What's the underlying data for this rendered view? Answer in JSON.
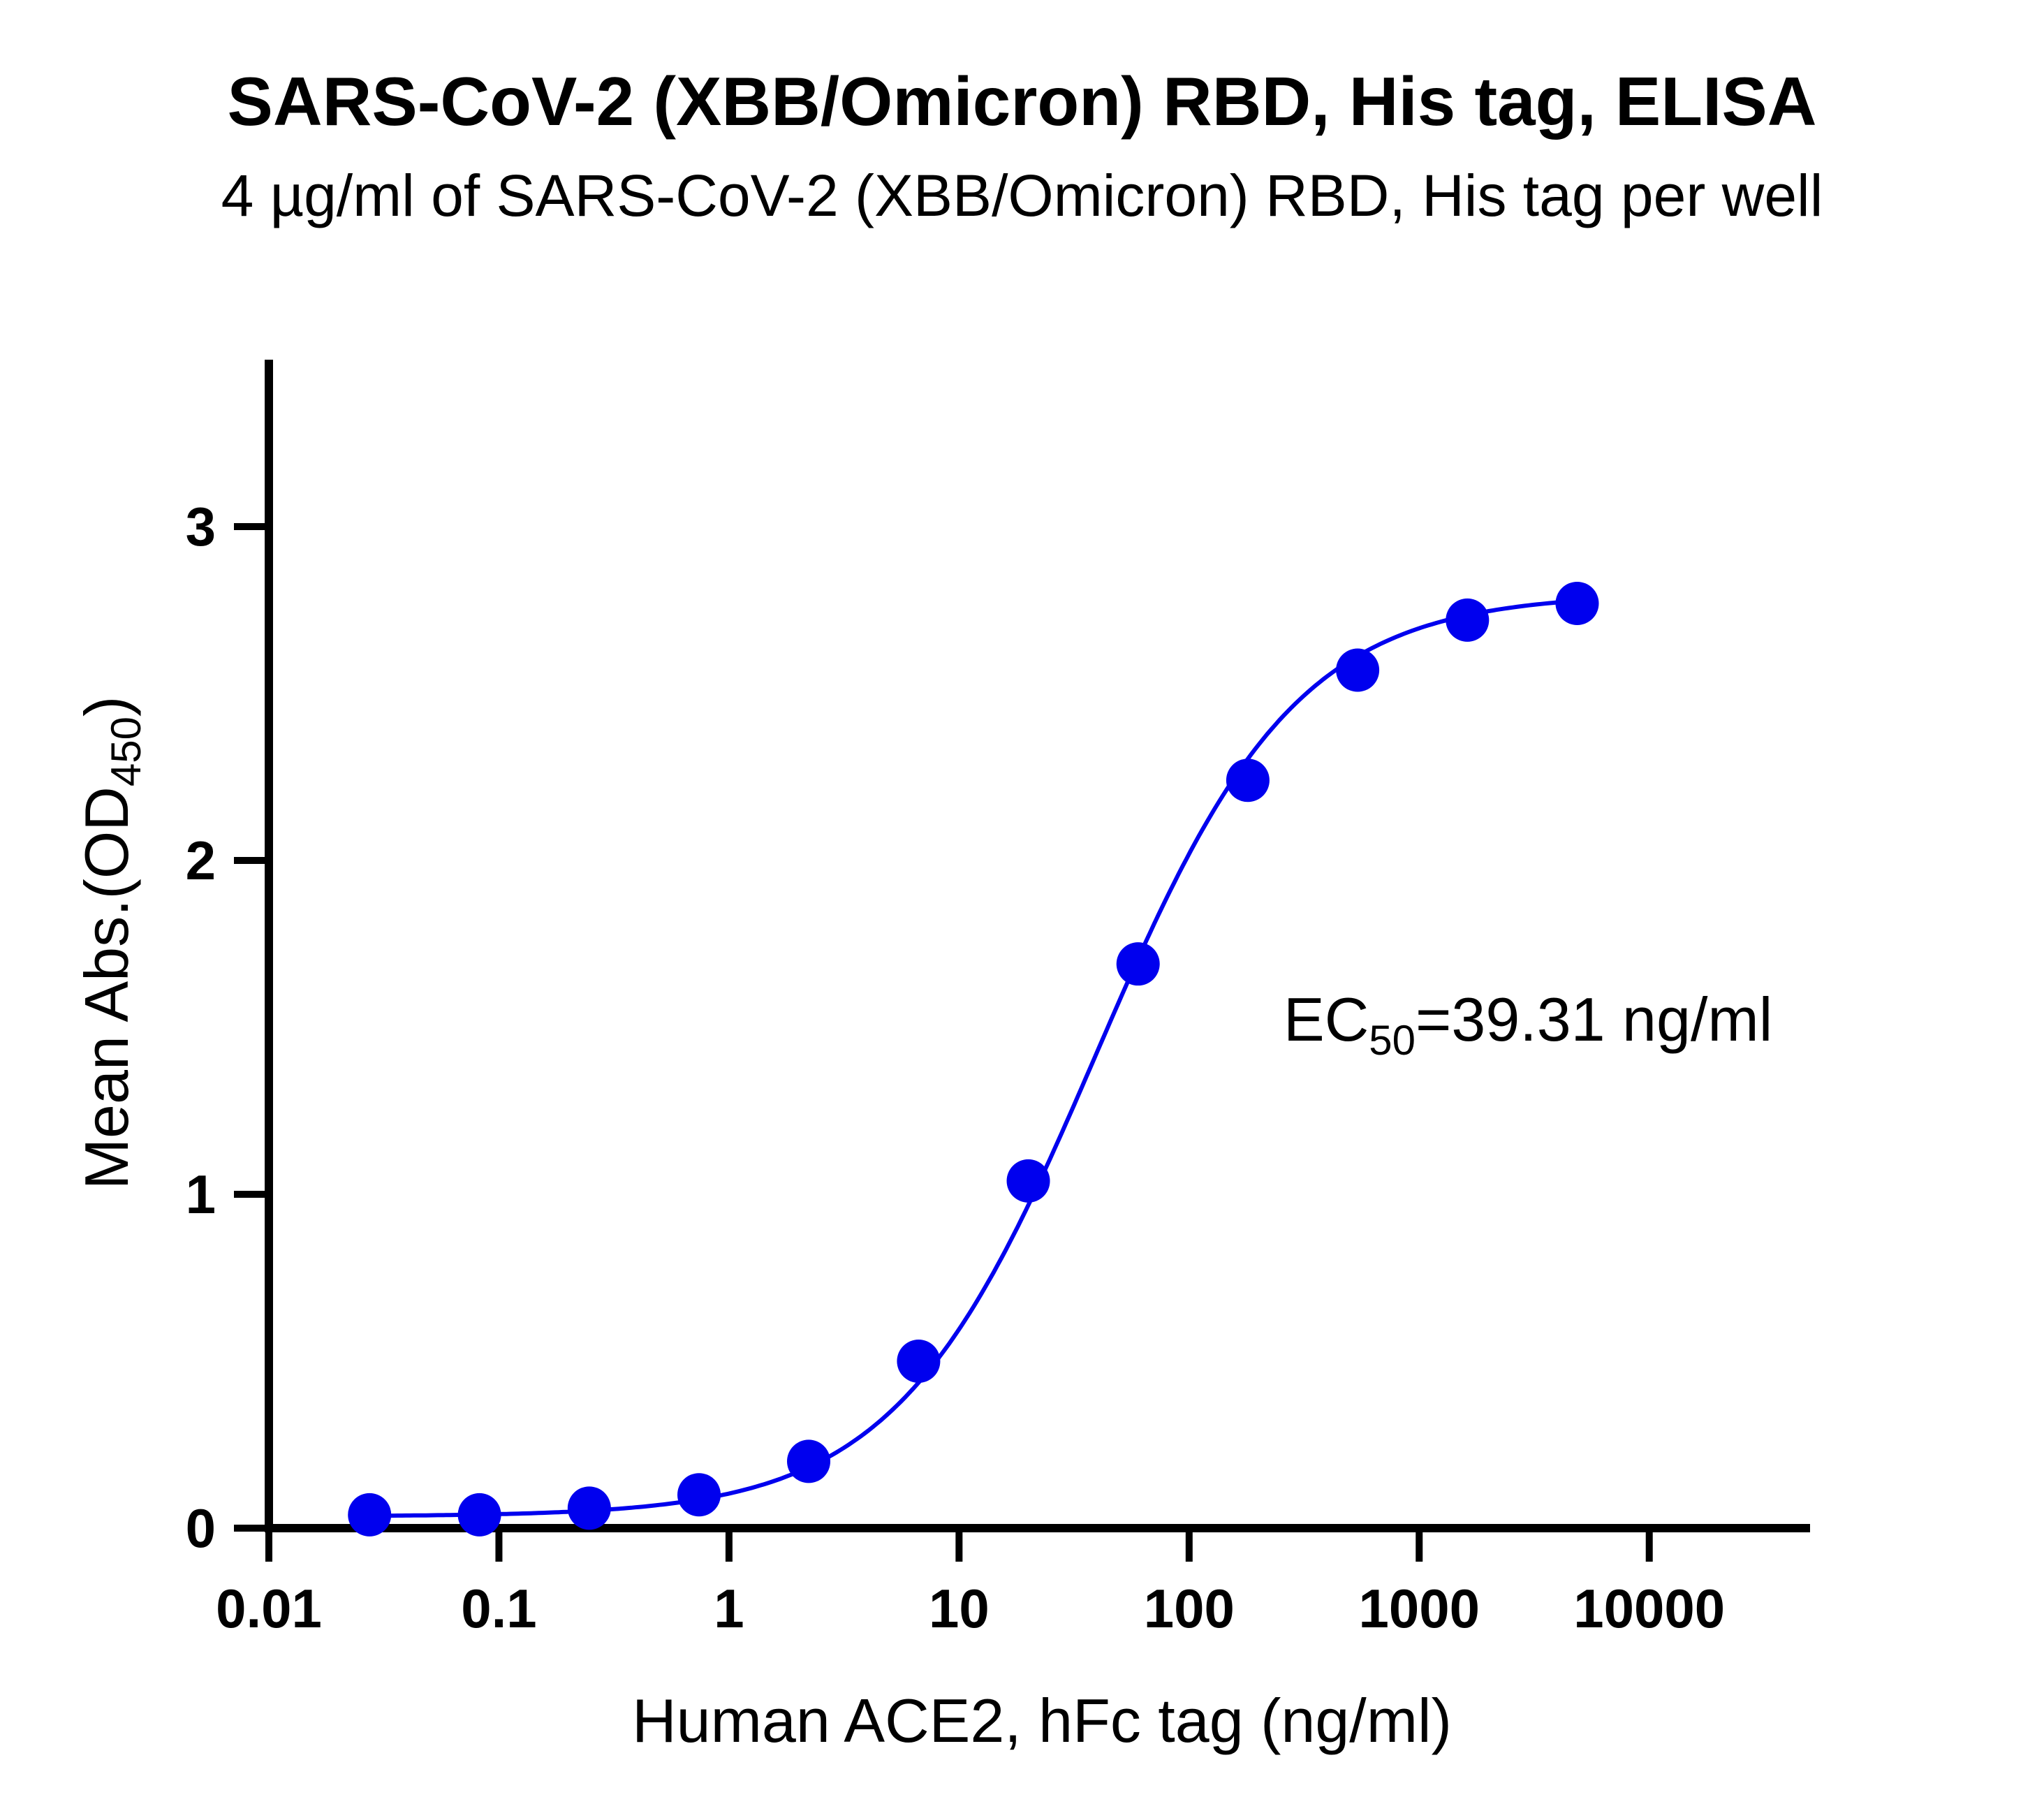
{
  "chart_data": {
    "type": "scatter",
    "title": "SARS-CoV-2 (XBB/Omicron) RBD, His tag, ELISA",
    "subtitle": "4 µg/ml of SARS-CoV-2 (XBB/Omicron) RBD, His tag per well",
    "xlabel": "Human ACE2, hFc tag (ng/ml)",
    "ylabel": {
      "prefix": "Mean Abs.(OD",
      "sub": "450",
      "suffix": ")"
    },
    "x_scale": "log",
    "xlim": [
      0.01,
      50000
    ],
    "ylim": [
      0,
      3.5
    ],
    "x_ticks": [
      {
        "value": 0.01,
        "label": "0.01"
      },
      {
        "value": 0.1,
        "label": "0.1"
      },
      {
        "value": 1,
        "label": "1"
      },
      {
        "value": 10,
        "label": "10"
      },
      {
        "value": 100,
        "label": "100"
      },
      {
        "value": 1000,
        "label": "1000"
      },
      {
        "value": 10000,
        "label": "10000"
      }
    ],
    "y_ticks": [
      {
        "value": 0,
        "label": "0"
      },
      {
        "value": 1,
        "label": "1"
      },
      {
        "value": 2,
        "label": "2"
      },
      {
        "value": 3,
        "label": "3"
      }
    ],
    "grid": false,
    "color": "#0000ee",
    "series": [
      {
        "x": [
          0.0274,
          0.0823,
          0.247,
          0.741,
          2.22,
          6.67,
          20,
          60,
          180,
          540,
          1620,
          4860
        ],
        "y": [
          0.04,
          0.04,
          0.06,
          0.1,
          0.2,
          0.5,
          1.04,
          1.69,
          2.24,
          2.57,
          2.72,
          2.77
        ]
      }
    ],
    "fit": {
      "bottom": 0.035,
      "top": 2.8,
      "ec50": 39.31,
      "hill": 1.0
    },
    "annotation": {
      "prefix": "EC",
      "sub": "50",
      "suffix": "=39.31 ng/ml"
    }
  }
}
